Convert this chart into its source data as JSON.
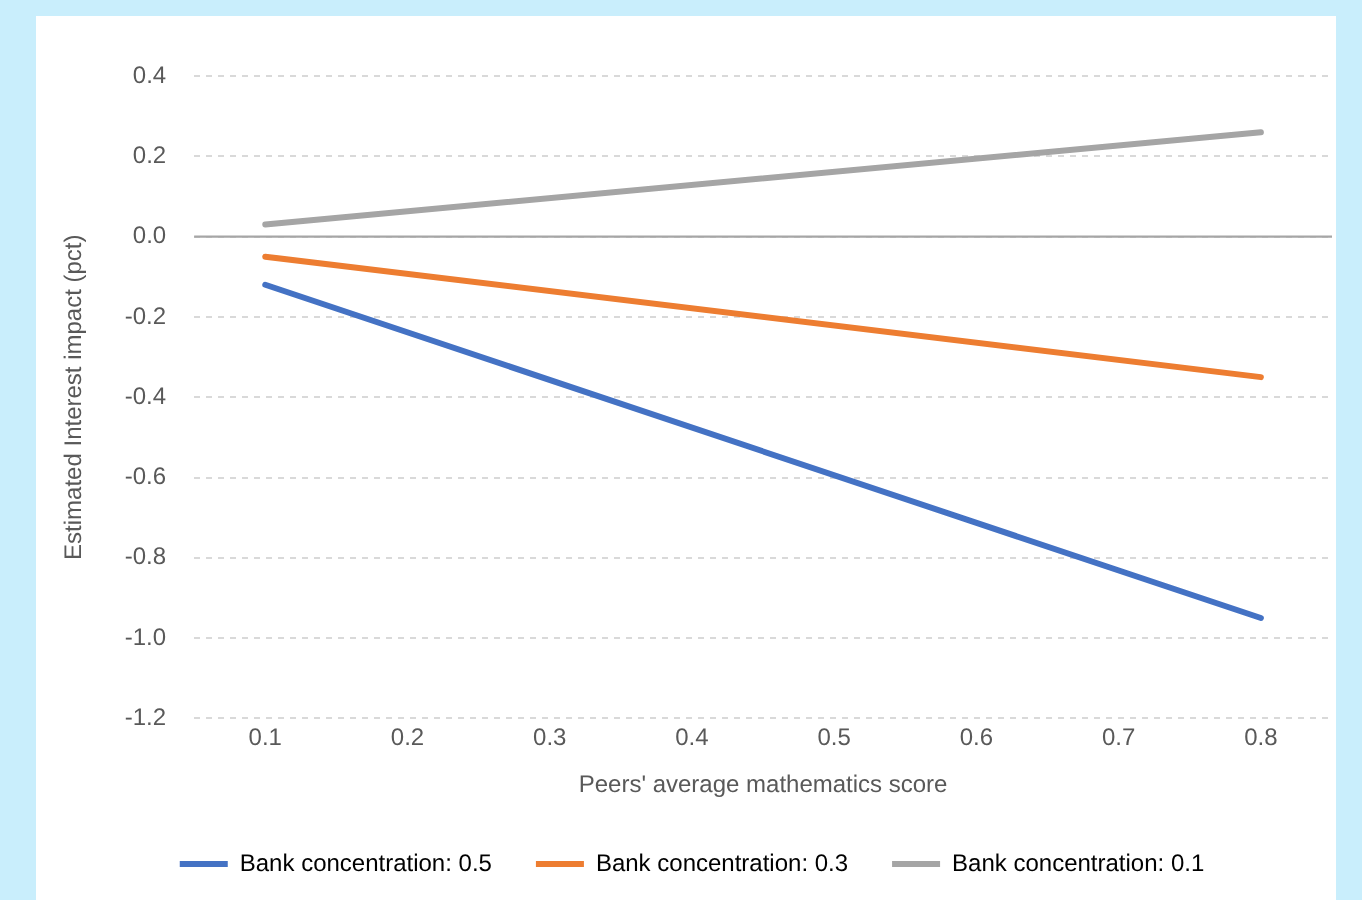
{
  "chart_data": {
    "type": "line",
    "xlabel": "Peers' average mathematics score",
    "ylabel": "Estimated Interest impact (pct)",
    "x": [
      0.1,
      0.8
    ],
    "series": [
      {
        "name": "Bank concentration: 0.5",
        "color": "#4472c4",
        "values": [
          -0.12,
          -0.95
        ]
      },
      {
        "name": "Bank concentration: 0.3",
        "color": "#ed7d31",
        "values": [
          -0.05,
          -0.35
        ]
      },
      {
        "name": "Bank concentration: 0.1",
        "color": "#a5a5a5",
        "values": [
          0.03,
          0.26
        ]
      }
    ],
    "xlim": [
      0.05,
      0.85
    ],
    "xticks": [
      0.1,
      0.2,
      0.3,
      0.4,
      0.5,
      0.6,
      0.7,
      0.8
    ],
    "ylim": [
      -1.2,
      0.4
    ],
    "yticks": [
      -1.2,
      {
        "value": -1,
        "label": "-1.0"
      },
      -0.8,
      -0.6,
      -0.4,
      -0.2,
      {
        "value": 0,
        "label": "0.0"
      },
      0.2,
      0.4
    ],
    "grid": "y",
    "legend": "bottom",
    "marker": "none",
    "line_style": "solid"
  }
}
